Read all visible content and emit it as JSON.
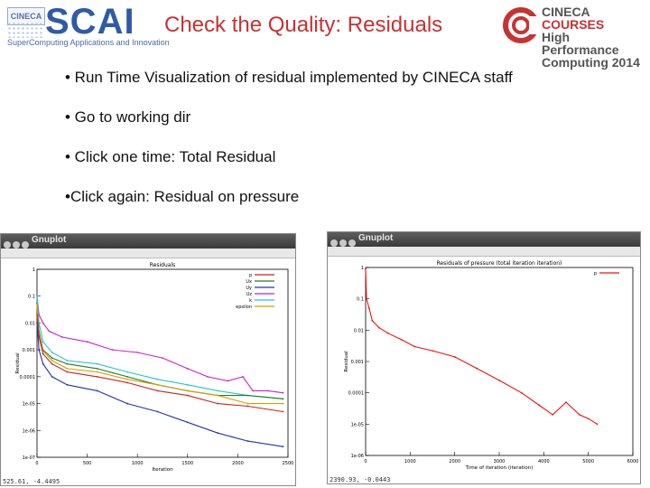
{
  "header": {
    "cineca_badge": "CINECA",
    "scai_logo": "SCAI",
    "scai_subtitle": "SuperComputing Applications and Innovation",
    "title": "Check the Quality: Residuals",
    "courses_logo": [
      "CINECA",
      "COURSES",
      "High Performance",
      "Computing 2014"
    ]
  },
  "bullets": [
    "• Run Time Visualization of residual implemented by CINECA staff",
    "• Go to working dir",
    "• Click one time: Total Residual",
    "•Click again: Residual on pressure"
  ],
  "left_window": {
    "title": "Gnuplot",
    "status": "525.61, -4.4495",
    "chart_data": {
      "type": "line",
      "title": "Residuals",
      "xlabel": "Iteration",
      "ylabel": "Residual",
      "log_y": true,
      "ylim": [
        1e-07,
        1
      ],
      "xlim": [
        0,
        2500
      ],
      "y_ticks": [
        "1",
        "0.1",
        "0.01",
        "0.001",
        "0.0001",
        "1e-05",
        "1e-06",
        "1e-07"
      ],
      "x_ticks": [
        "0",
        "500",
        "1000",
        "1500",
        "2000",
        "2500"
      ],
      "legend": [
        "p",
        "Ux",
        "Uy",
        "Uz",
        "k",
        "epsilon"
      ],
      "colors": [
        "#cc2222",
        "#2a7a2a",
        "#2233aa",
        "#c822c8",
        "#22c8c8",
        "#d2a000"
      ],
      "legend_placement": "top-right",
      "series": [
        {
          "name": "p",
          "color": "#c822c8",
          "x": [
            0,
            20,
            60,
            120,
            250,
            500,
            750,
            1000,
            1250,
            1500,
            1700,
            1900,
            2050,
            2150,
            2300,
            2450
          ],
          "values": [
            0.1,
            0.02,
            0.01,
            0.005,
            0.003,
            0.002,
            0.001,
            0.0008,
            0.0005,
            0.0002,
            0.0001,
            7e-05,
            0.0001,
            3e-05,
            3e-05,
            2.5e-05
          ]
        },
        {
          "name": "Ux",
          "color": "#22c8c8",
          "x": [
            0,
            20,
            60,
            150,
            300,
            600,
            900,
            1200,
            1500,
            1800,
            2100,
            2450
          ],
          "values": [
            0.1,
            0.01,
            0.002,
            0.0008,
            0.0004,
            0.0003,
            0.00015,
            8e-05,
            5e-05,
            3e-05,
            2e-05,
            1.5e-05
          ]
        },
        {
          "name": "Uy",
          "color": "#2a7a2a",
          "x": [
            0,
            20,
            60,
            150,
            300,
            600,
            900,
            1200,
            1500,
            1800,
            2100,
            2450
          ],
          "values": [
            0.05,
            0.005,
            0.001,
            0.0005,
            0.0003,
            0.0002,
            0.0001,
            5e-05,
            3e-05,
            2e-05,
            2e-05,
            1.5e-05
          ]
        },
        {
          "name": "Uz",
          "color": "#d2a000",
          "x": [
            0,
            20,
            60,
            150,
            300,
            600,
            900,
            1200,
            1500,
            1800,
            2100,
            2450
          ],
          "values": [
            0.05,
            0.004,
            0.0009,
            0.0004,
            0.0002,
            0.00015,
            8e-05,
            5e-05,
            3e-05,
            2e-05,
            1e-05,
            1e-05
          ]
        },
        {
          "name": "k",
          "color": "#cc2222",
          "x": [
            0,
            20,
            60,
            150,
            300,
            600,
            900,
            1200,
            1500,
            1800,
            2100,
            2450
          ],
          "values": [
            0.02,
            0.003,
            0.0007,
            0.0003,
            0.00015,
            0.0001,
            6e-05,
            3e-05,
            2e-05,
            1e-05,
            8e-06,
            5e-06
          ]
        },
        {
          "name": "epsilon",
          "color": "#2233aa",
          "x": [
            0,
            20,
            60,
            150,
            300,
            600,
            900,
            1200,
            1500,
            1800,
            2100,
            2450
          ],
          "values": [
            0.01,
            0.001,
            0.0003,
            0.0001,
            5e-05,
            3e-05,
            1e-05,
            5e-06,
            2e-06,
            8e-07,
            4e-07,
            2.5e-07
          ]
        }
      ]
    }
  },
  "right_window": {
    "title": "Gnuplot",
    "status": "2390.93, -0.0443",
    "chart_data": {
      "type": "line",
      "title": "Residuals of pressure (total iteration iteration)",
      "xlabel": "Time of iteration (iteration)",
      "ylabel": "Residual",
      "log_y": true,
      "ylim": [
        1e-06,
        1
      ],
      "xlim": [
        0,
        6000
      ],
      "y_ticks": [
        "1",
        "0.1",
        "0.01",
        "0.001",
        "0.0001",
        "1e-05",
        "1e-06"
      ],
      "x_ticks": [
        "0",
        "1000",
        "2000",
        "3000",
        "4000",
        "5000",
        "6000"
      ],
      "legend": [
        "p"
      ],
      "colors": [
        "#ee1111"
      ],
      "legend_placement": "top-right",
      "series": [
        {
          "name": "p",
          "color": "#ee1111",
          "x": [
            0,
            20,
            80,
            150,
            300,
            500,
            800,
            1100,
            1500,
            2000,
            2500,
            3000,
            3500,
            3900,
            4200,
            4500,
            4800,
            5000,
            5200
          ],
          "values": [
            0.9,
            0.1,
            0.05,
            0.02,
            0.012,
            0.008,
            0.005,
            0.003,
            0.0022,
            0.0014,
            0.0006,
            0.00025,
            0.0001,
            4e-05,
            2e-05,
            5e-05,
            2e-05,
            1.5e-05,
            1e-05
          ]
        }
      ]
    }
  }
}
